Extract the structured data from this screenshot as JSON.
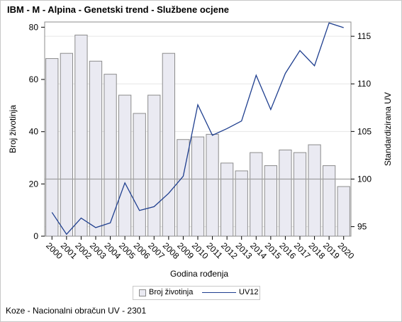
{
  "title": "IBM - M - Alpina - Genetski trend - Službene ocjene",
  "footnote": "Koze - Nacionalni obračun UV - 2301",
  "colors": {
    "bar_fill": "#eaeaf2",
    "bar_stroke": "#8c8c8c",
    "line": "#1f3f8f",
    "grid": "#e6e6e6",
    "refline": "#a0a0a0"
  },
  "chart_data": {
    "type": "bar",
    "xlabel": "Godina rođenja",
    "ylabel": "Broj životinja",
    "y2label": "Standardizirana UV",
    "categories": [
      "2000",
      "2001",
      "2002",
      "2003",
      "2004",
      "2005",
      "2006",
      "2007",
      "2008",
      "2009",
      "2010",
      "2011",
      "2012",
      "2013",
      "2014",
      "2015",
      "2016",
      "2017",
      "2018",
      "2019",
      "2020"
    ],
    "ylim": [
      0,
      82
    ],
    "yticks": [
      0,
      20,
      40,
      60,
      80
    ],
    "y2lim": [
      94,
      116.5
    ],
    "y2ticks": [
      95,
      100,
      105,
      110,
      115
    ],
    "reference_line_y2": 100,
    "grid": true,
    "legend_placement": "bottom",
    "series": [
      {
        "name": "Broj životinja",
        "type": "bar",
        "axis": "left",
        "values": [
          68,
          70,
          77,
          67,
          62,
          54,
          47,
          54,
          70,
          37,
          38,
          39,
          28,
          25,
          32,
          27,
          33,
          32,
          35,
          27,
          19
        ]
      },
      {
        "name": "UV12",
        "type": "line",
        "axis": "right",
        "values": [
          96.5,
          94.2,
          95.9,
          94.9,
          95.4,
          99.6,
          96.7,
          97.1,
          98.5,
          100.3,
          107.8,
          104.6,
          105.3,
          106.1,
          110.9,
          107.3,
          111.1,
          113.5,
          111.9,
          116.4,
          115.9
        ]
      }
    ]
  }
}
